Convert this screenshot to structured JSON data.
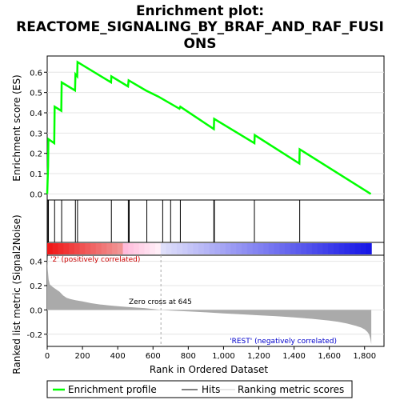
{
  "title_line1": "Enrichment plot:",
  "title_line2": "REACTOME_SIGNALING_BY_BRAF_AND_RAF_FUSI",
  "title_line3": "ONS",
  "colors": {
    "es_line": "#00ff00",
    "hits": "#000000",
    "metric_fill": "#aaaaaa",
    "positive_text": "#cc0000",
    "negative_text": "#0000cc",
    "zero_cross_line": "#aaaaaa"
  },
  "chart_data": [
    {
      "type": "line",
      "panel": "enrichment",
      "ylabel": "Enrichment score (ES)",
      "ylim": [
        -0.03,
        0.68
      ],
      "xlim": [
        0,
        1910
      ],
      "yticks": [
        "0.0",
        "0.1",
        "0.2",
        "0.3",
        "0.4",
        "0.5",
        "0.6"
      ],
      "grid": true,
      "series": [
        {
          "name": "Enrichment profile",
          "x": [
            0,
            5,
            7,
            40,
            42,
            80,
            82,
            158,
            160,
            170,
            172,
            362,
            364,
            458,
            462,
            560,
            630,
            690,
            750,
            755,
            945,
            947,
            1175,
            1177,
            1430,
            1432,
            1835
          ],
          "y": [
            0.0,
            0.14,
            0.27,
            0.25,
            0.43,
            0.41,
            0.55,
            0.51,
            0.59,
            0.58,
            0.65,
            0.55,
            0.58,
            0.53,
            0.56,
            0.51,
            0.48,
            0.45,
            0.42,
            0.43,
            0.32,
            0.37,
            0.25,
            0.29,
            0.15,
            0.22,
            0.0
          ]
        }
      ]
    },
    {
      "type": "scatter",
      "panel": "hits",
      "series": [
        {
          "name": "Hits",
          "x": [
            5,
            7,
            42,
            82,
            160,
            172,
            364,
            460,
            465,
            565,
            655,
            700,
            755,
            945,
            948,
            1175,
            1432
          ]
        }
      ]
    },
    {
      "type": "area",
      "panel": "ranked_list_metric",
      "ylabel": "Ranked list metric (Signal2Noise)",
      "xlabel": "Rank in Ordered Dataset",
      "ylim": [
        -0.3,
        0.45
      ],
      "xlim": [
        0,
        1910
      ],
      "yticks": [
        "-0.2",
        "0.0",
        "0.2",
        "0.4"
      ],
      "xticks": [
        "0",
        "200",
        "400",
        "600",
        "800",
        "1,000",
        "1,200",
        "1,400",
        "1,600",
        "1,800"
      ],
      "zero_cross": 645,
      "series": [
        {
          "name": "Ranking metric scores",
          "x": [
            0,
            3,
            8,
            15,
            30,
            50,
            70,
            90,
            110,
            130,
            160,
            200,
            250,
            300,
            350,
            400,
            450,
            500,
            550,
            600,
            645,
            700,
            800,
            900,
            1000,
            1100,
            1200,
            1300,
            1400,
            1500,
            1600,
            1650,
            1700,
            1750,
            1780,
            1800,
            1815,
            1825,
            1833,
            1838
          ],
          "y": [
            0.44,
            0.33,
            0.25,
            0.21,
            0.19,
            0.17,
            0.15,
            0.12,
            0.1,
            0.09,
            0.08,
            0.07,
            0.055,
            0.045,
            0.037,
            0.03,
            0.025,
            0.02,
            0.015,
            0.008,
            0.0,
            -0.005,
            -0.012,
            -0.02,
            -0.028,
            -0.036,
            -0.044,
            -0.052,
            -0.062,
            -0.073,
            -0.088,
            -0.098,
            -0.112,
            -0.13,
            -0.145,
            -0.16,
            -0.18,
            -0.2,
            -0.24,
            -0.28
          ]
        }
      ]
    }
  ],
  "annotations": {
    "positive": "'2' (positively correlated)",
    "negative": "'REST' (negatively correlated)",
    "zero_cross": "Zero cross at 645"
  },
  "legend": {
    "items": [
      {
        "label": "Enrichment profile",
        "kind": "line"
      },
      {
        "label": "Hits",
        "kind": "hit"
      },
      {
        "label": "Ranking metric scores",
        "kind": "metric"
      }
    ]
  }
}
